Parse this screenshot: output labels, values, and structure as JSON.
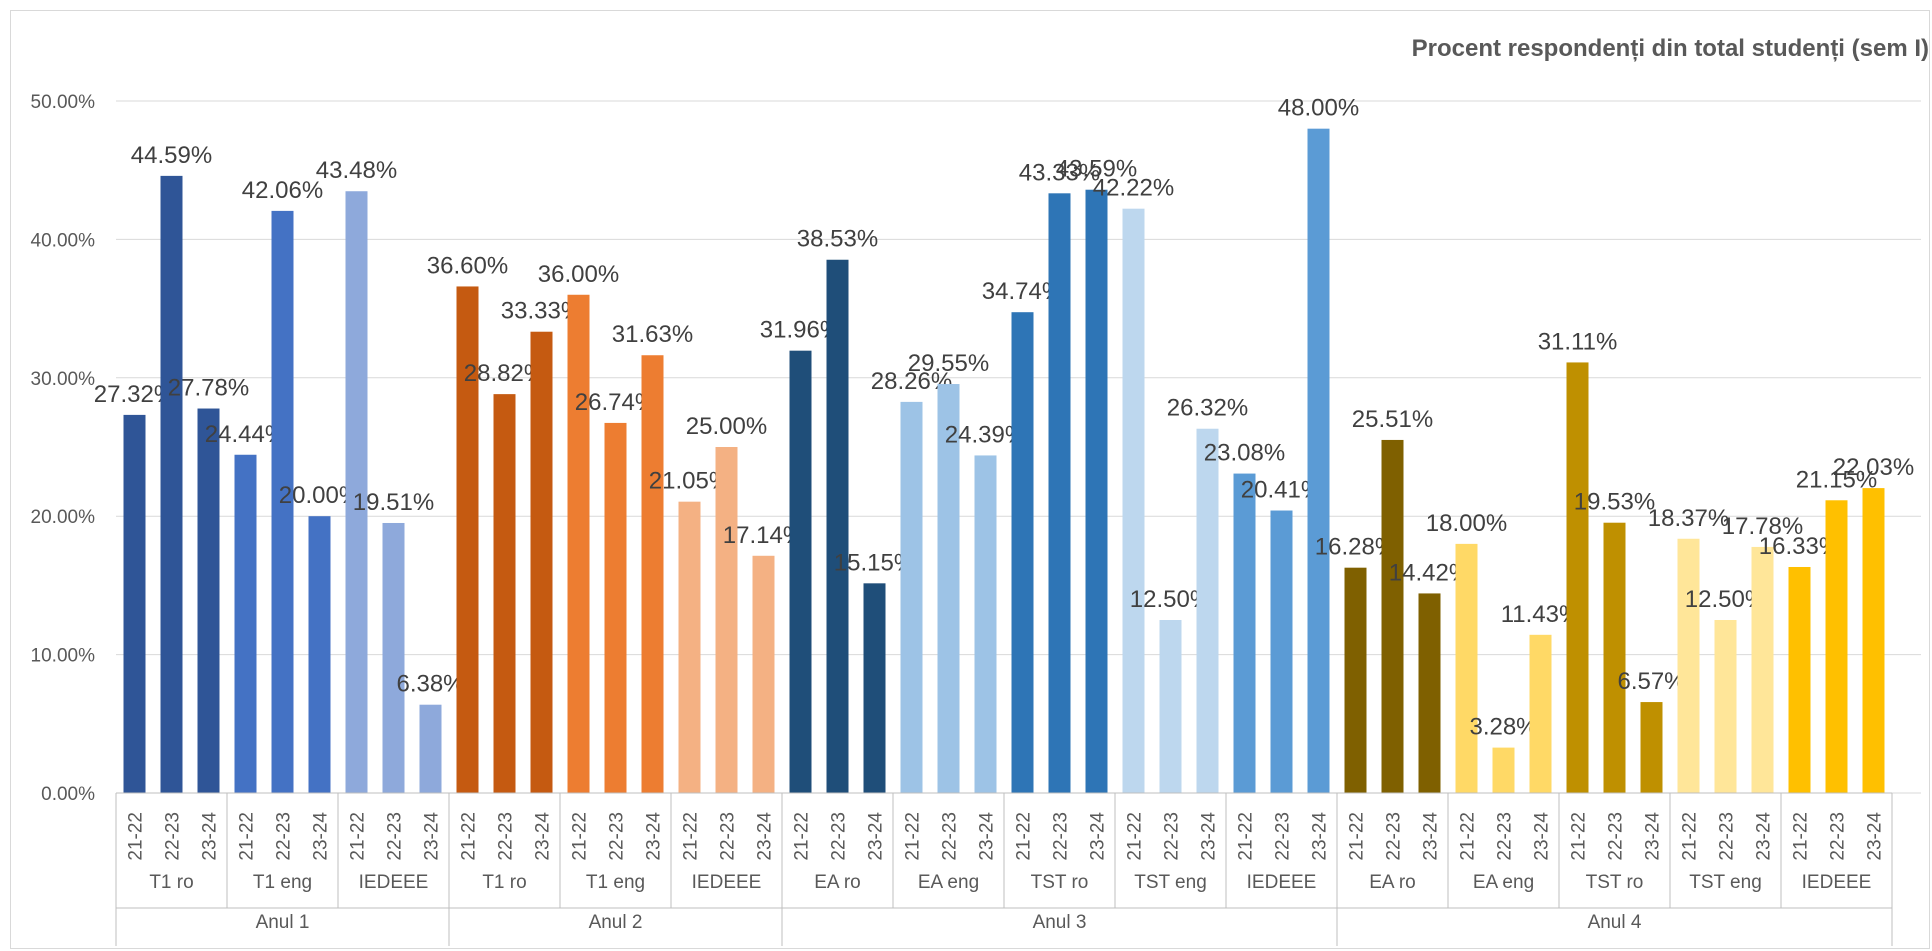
{
  "chart_data": {
    "type": "bar",
    "title": "Procent respondenți din total studenți (sem I)",
    "xlabel": "",
    "ylabel": "",
    "ylim": [
      0,
      50
    ],
    "y_ticks": [
      "0.00%",
      "10.00%",
      "20.00%",
      "30.00%",
      "40.00%",
      "50.00%"
    ],
    "grid": true,
    "legend": "none",
    "groups": [
      {
        "year": "Anul 1",
        "programs": [
          {
            "name": "T1 ro",
            "color": "#2F5597",
            "years": [
              "21-22",
              "22-23",
              "23-24"
            ],
            "values": [
              27.32,
              44.59,
              27.78
            ],
            "labels": [
              "27.32%",
              "44.59%",
              "27.78%"
            ]
          },
          {
            "name": "T1 eng",
            "color": "#4472C4",
            "years": [
              "21-22",
              "22-23",
              "23-24"
            ],
            "values": [
              24.44,
              42.06,
              20.0
            ],
            "labels": [
              "24.44%",
              "42.06%",
              "20.00%"
            ]
          },
          {
            "name": "IEDEEE",
            "color": "#8EA9DB",
            "years": [
              "21-22",
              "22-23",
              "23-24"
            ],
            "values": [
              43.48,
              19.51,
              6.38
            ],
            "labels": [
              "43.48%",
              "19.51%",
              "6.38%"
            ]
          }
        ]
      },
      {
        "year": "Anul 2",
        "programs": [
          {
            "name": "T1 ro",
            "color": "#C55A11",
            "years": [
              "21-22",
              "22-23",
              "23-24"
            ],
            "values": [
              36.6,
              28.82,
              33.33
            ],
            "labels": [
              "36.60%",
              "28.82%",
              "33.33%"
            ]
          },
          {
            "name": "T1 eng",
            "color": "#ED7D31",
            "years": [
              "21-22",
              "22-23",
              "23-24"
            ],
            "values": [
              36.0,
              26.74,
              31.63
            ],
            "labels": [
              "36.00%",
              "26.74%",
              "31.63%"
            ]
          },
          {
            "name": "IEDEEE",
            "color": "#F4B183",
            "years": [
              "21-22",
              "22-23",
              "23-24"
            ],
            "values": [
              21.05,
              25.0,
              17.14
            ],
            "labels": [
              "21.05%",
              "25.00%",
              "17.14%"
            ]
          }
        ]
      },
      {
        "year": "Anul 3",
        "programs": [
          {
            "name": "EA ro",
            "color": "#1F4E79",
            "years": [
              "21-22",
              "22-23",
              "23-24"
            ],
            "values": [
              31.96,
              38.53,
              15.15
            ],
            "labels": [
              "31.96%",
              "38.53%",
              "15.15%"
            ]
          },
          {
            "name": "EA eng",
            "color": "#9DC3E6",
            "years": [
              "21-22",
              "22-23",
              "23-24"
            ],
            "values": [
              28.26,
              29.55,
              24.39
            ],
            "labels": [
              "28.26%",
              "29.55%",
              "24.39%"
            ]
          },
          {
            "name": "TST ro",
            "color": "#2E75B6",
            "years": [
              "21-22",
              "22-23",
              "23-24"
            ],
            "values": [
              34.74,
              43.33,
              43.59
            ],
            "labels": [
              "34.74%",
              "43.33%",
              "43.59%"
            ]
          },
          {
            "name": "TST eng",
            "color": "#BDD7EE",
            "years": [
              "21-22",
              "22-23",
              "23-24"
            ],
            "values": [
              42.22,
              12.5,
              26.32
            ],
            "labels": [
              "42.22%",
              "12.50%",
              "26.32%"
            ]
          },
          {
            "name": "IEDEEE",
            "color": "#5B9BD5",
            "years": [
              "21-22",
              "22-23",
              "23-24"
            ],
            "values": [
              23.08,
              20.41,
              48.0
            ],
            "labels": [
              "23.08%",
              "20.41%",
              "48.00%"
            ]
          }
        ]
      },
      {
        "year": "Anul 4",
        "programs": [
          {
            "name": "EA ro",
            "color": "#7F6000",
            "years": [
              "21-22",
              "22-23",
              "23-24"
            ],
            "values": [
              16.28,
              25.51,
              14.42
            ],
            "labels": [
              "16.28%",
              "25.51%",
              "14.42%"
            ]
          },
          {
            "name": "EA eng",
            "color": "#FFD966",
            "years": [
              "21-22",
              "22-23",
              "23-24"
            ],
            "values": [
              18.0,
              3.28,
              11.43
            ],
            "labels": [
              "18.00%",
              "3.28%",
              "11.43%"
            ]
          },
          {
            "name": "TST ro",
            "color": "#BF9000",
            "years": [
              "21-22",
              "22-23",
              "23-24"
            ],
            "values": [
              31.11,
              19.53,
              6.57
            ],
            "labels": [
              "31.11%",
              "19.53%",
              "6.57%"
            ]
          },
          {
            "name": "TST eng",
            "color": "#FFE699",
            "years": [
              "21-22",
              "22-23",
              "23-24"
            ],
            "values": [
              18.37,
              12.5,
              17.78
            ],
            "labels": [
              "18.37%",
              "12.50%",
              "17.78%"
            ]
          },
          {
            "name": "IEDEEE",
            "color": "#FFC000",
            "years": [
              "21-22",
              "22-23",
              "23-24"
            ],
            "values": [
              16.33,
              21.15,
              22.03
            ],
            "labels": [
              "16.33%",
              "21.15%",
              "22.03%"
            ]
          }
        ]
      }
    ]
  }
}
